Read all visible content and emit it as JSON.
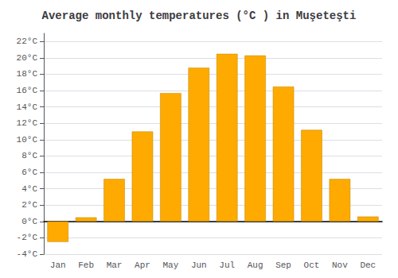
{
  "chart_data": {
    "type": "bar",
    "title": "Average monthly temperatures (°C ) in Muşeteşti",
    "categories": [
      "Jan",
      "Feb",
      "Mar",
      "Apr",
      "May",
      "Jun",
      "Jul",
      "Aug",
      "Sep",
      "Oct",
      "Nov",
      "Dec"
    ],
    "values": [
      -2.5,
      0.5,
      5.2,
      11.0,
      15.7,
      18.8,
      20.5,
      20.3,
      16.5,
      11.2,
      5.2,
      0.6
    ],
    "color": "#FFAA00",
    "ylim": [
      -4,
      23
    ],
    "yticks": [
      {
        "value": -4,
        "label": "-4°C"
      },
      {
        "value": -2,
        "label": "-2°C"
      },
      {
        "value": 0,
        "label": "0°C"
      },
      {
        "value": 2,
        "label": "2°C"
      },
      {
        "value": 4,
        "label": "4°C"
      },
      {
        "value": 6,
        "label": "6°C"
      },
      {
        "value": 8,
        "label": "8°C"
      },
      {
        "value": 10,
        "label": "10°C"
      },
      {
        "value": 12,
        "label": "12°C"
      },
      {
        "value": 14,
        "label": "14°C"
      },
      {
        "value": 16,
        "label": "16°C"
      },
      {
        "value": 18,
        "label": "18°C"
      },
      {
        "value": 20,
        "label": "20°C"
      },
      {
        "value": 22,
        "label": "22°C"
      }
    ],
    "grid": true
  }
}
